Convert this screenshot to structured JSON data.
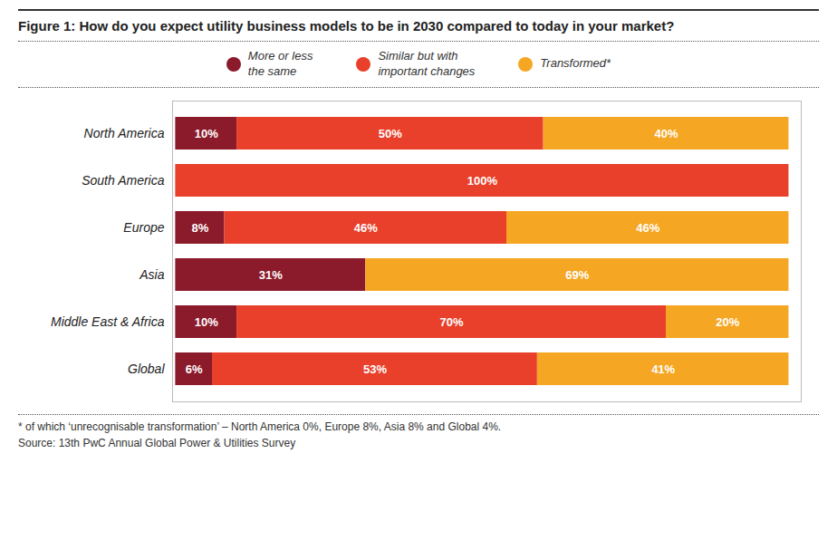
{
  "chart_data": {
    "type": "bar",
    "orientation": "horizontal",
    "stacked": true,
    "title": "Figure 1: How do you expect utility business models to be in 2030 compared to today in your market?",
    "categories": [
      "North America",
      "South America",
      "Europe",
      "Asia",
      "Middle East & Africa",
      "Global"
    ],
    "series": [
      {
        "name": "More or less\nthe same",
        "color": "#8B1A2A",
        "values": [
          10,
          0,
          8,
          31,
          10,
          6
        ],
        "value_labels": [
          "10%",
          null,
          "8%",
          "31%",
          "10%",
          "6%"
        ]
      },
      {
        "name": "Similar but with\nimportant changes",
        "color": "#E8402A",
        "values": [
          50,
          100,
          46,
          0,
          70,
          53
        ],
        "value_labels": [
          "50%",
          "100%",
          "46%",
          null,
          "70%",
          "53%"
        ]
      },
      {
        "name": "Transformed*",
        "color": "#F5A623",
        "values": [
          40,
          0,
          46,
          69,
          20,
          41
        ],
        "value_labels": [
          "40%",
          null,
          "46%",
          "69%",
          "20%",
          "41%"
        ]
      }
    ],
    "xlim": [
      -0.5,
      102
    ],
    "data_labels": true,
    "tick_labels": "y",
    "grid": false,
    "legend": "top",
    "annotations": [
      "* of which ‘unrecognisable transformation’ – North America 0%, Europe 8%, Asia 8% and Global 4%.",
      "Source: 13th PwC Annual Global Power & Utilities Survey"
    ]
  }
}
